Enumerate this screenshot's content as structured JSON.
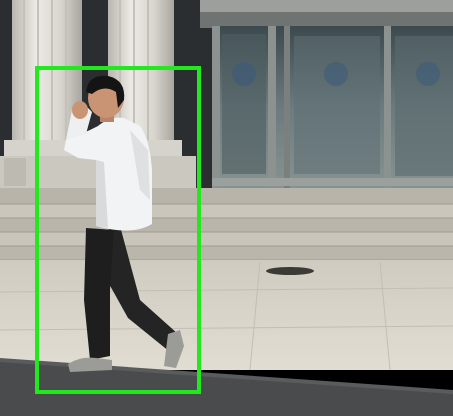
{
  "scene": {
    "objects": [
      "building",
      "columns",
      "glass-doors",
      "steps",
      "pavement",
      "road",
      "person",
      "manhole-cover"
    ]
  },
  "detection": {
    "label": "person",
    "box_color": "#22e81e"
  },
  "colors": {
    "column": "#dcd9d2",
    "column_shadow": "#b9b6ae",
    "facade_dark": "#2a2e30",
    "glass": "#5d6e72",
    "door_frame": "#8c9290",
    "steps": "#c6c2b8",
    "pavement": "#d8d4ca",
    "road": "#4a4b4d",
    "shirt": "#f2f3f4",
    "trousers": "#242424",
    "skin": "#c99474",
    "hair": "#141414",
    "shoe": "#9b9b97"
  }
}
